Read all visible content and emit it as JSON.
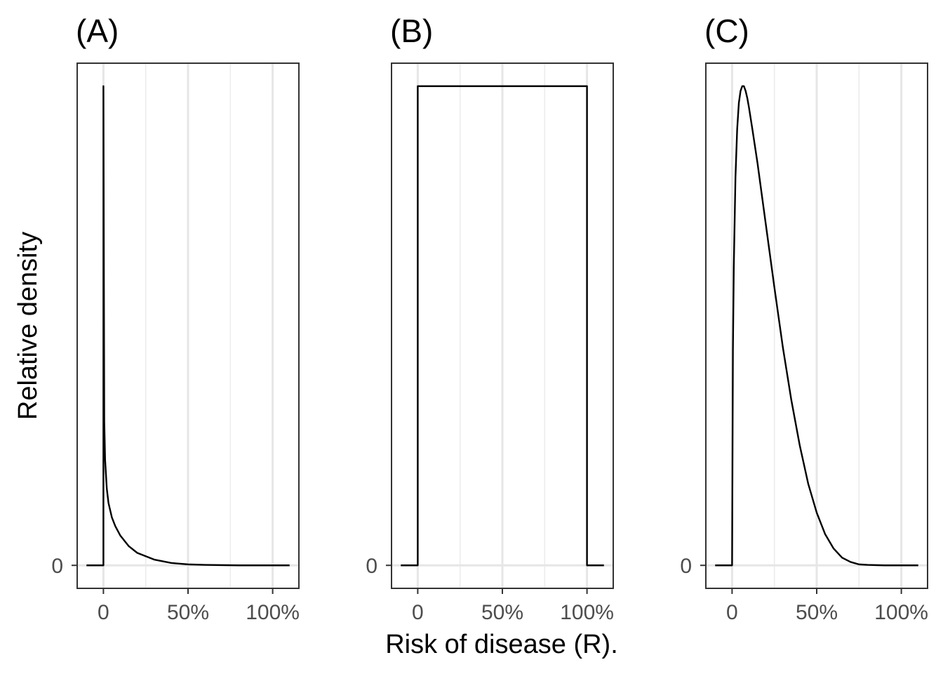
{
  "chart_data": [
    {
      "type": "line",
      "title": "(A)",
      "distribution": "strong peak at 0 with long right tail",
      "x": [
        -0.1,
        0,
        0,
        0.005,
        0.01,
        0.02,
        0.03,
        0.05,
        0.07,
        0.1,
        0.15,
        0.2,
        0.3,
        0.4,
        0.5,
        0.6,
        0.8,
        1.0,
        1.1
      ],
      "y": [
        0,
        0,
        1.0,
        0.3,
        0.22,
        0.16,
        0.13,
        0.1,
        0.082,
        0.062,
        0.04,
        0.026,
        0.012,
        0.005,
        0.002,
        0.001,
        0,
        0,
        0
      ],
      "xlim": [
        -0.155,
        1.155
      ],
      "ylim": [
        -0.048,
        1.048
      ],
      "x_ticks": [
        0,
        0.5,
        1.0
      ],
      "x_tick_labels": [
        "0",
        "50%",
        "100%"
      ],
      "y_ticks": [
        0
      ],
      "y_tick_labels": [
        "0"
      ]
    },
    {
      "type": "line",
      "title": "(B)",
      "distribution": "uniform on [0, 1]",
      "x": [
        -0.1,
        0,
        0,
        1.0,
        1.0,
        1.1
      ],
      "y": [
        0,
        0,
        1.0,
        1.0,
        0,
        0
      ],
      "xlim": [
        -0.155,
        1.155
      ],
      "ylim": [
        -0.048,
        1.048
      ],
      "x_ticks": [
        0,
        0.5,
        1.0
      ],
      "x_tick_labels": [
        "0",
        "50%",
        "100%"
      ],
      "y_ticks": [
        0
      ],
      "y_tick_labels": [
        "0"
      ]
    },
    {
      "type": "line",
      "title": "(C)",
      "distribution": "right-skewed, peak near 7%",
      "x": [
        -0.1,
        0,
        0,
        0.005,
        0.01,
        0.02,
        0.03,
        0.04,
        0.05,
        0.06,
        0.07,
        0.08,
        0.09,
        0.1,
        0.12,
        0.15,
        0.2,
        0.25,
        0.3,
        0.35,
        0.4,
        0.45,
        0.5,
        0.55,
        0.6,
        0.65,
        0.7,
        0.75,
        0.8,
        0.9,
        1.0,
        1.1
      ],
      "y": [
        0,
        0,
        0,
        0.45,
        0.62,
        0.81,
        0.91,
        0.965,
        0.99,
        1.0,
        1.0,
        0.99,
        0.975,
        0.955,
        0.91,
        0.84,
        0.71,
        0.58,
        0.455,
        0.345,
        0.25,
        0.17,
        0.11,
        0.065,
        0.035,
        0.016,
        0.007,
        0.002,
        0.001,
        0,
        0,
        0
      ],
      "xlim": [
        -0.155,
        1.155
      ],
      "ylim": [
        -0.048,
        1.048
      ],
      "x_ticks": [
        0,
        0.5,
        1.0
      ],
      "x_tick_labels": [
        "0",
        "50%",
        "100%"
      ],
      "y_ticks": [
        0
      ],
      "y_tick_labels": [
        "0"
      ]
    }
  ],
  "axes": {
    "xlabel": "Risk of disease (R).",
    "ylabel": "Relative density"
  }
}
